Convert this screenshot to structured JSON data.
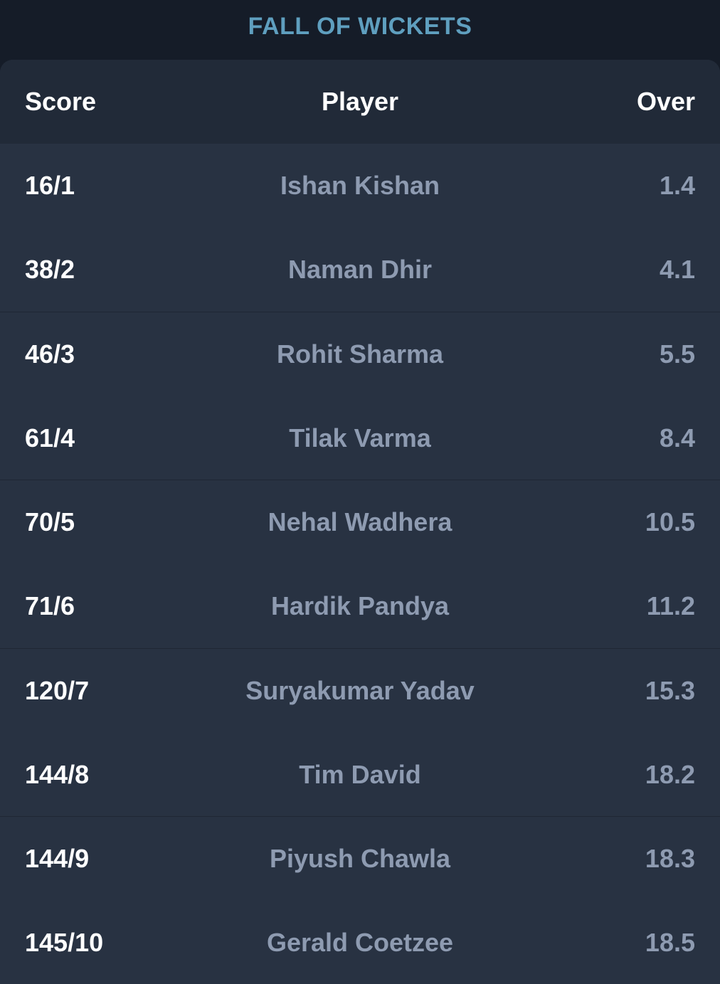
{
  "title": "FALL OF WICKETS",
  "columns": {
    "score": "Score",
    "player": "Player",
    "over": "Over"
  },
  "rows": [
    {
      "score": "16/1",
      "player": "Ishan Kishan",
      "over": "1.4"
    },
    {
      "score": "38/2",
      "player": "Naman Dhir",
      "over": "4.1"
    },
    {
      "score": "46/3",
      "player": "Rohit Sharma",
      "over": "5.5"
    },
    {
      "score": "61/4",
      "player": "Tilak Varma",
      "over": "8.4"
    },
    {
      "score": "70/5",
      "player": "Nehal Wadhera",
      "over": "10.5"
    },
    {
      "score": "71/6",
      "player": "Hardik Pandya",
      "over": "11.2"
    },
    {
      "score": "120/7",
      "player": "Suryakumar Yadav",
      "over": "15.3"
    },
    {
      "score": "144/8",
      "player": "Tim David",
      "over": "18.2"
    },
    {
      "score": "144/9",
      "player": "Piyush Chawla",
      "over": "18.3"
    },
    {
      "score": "145/10",
      "player": "Gerald Coetzee",
      "over": "18.5"
    }
  ],
  "colors": {
    "title": "#5f9fbf",
    "background": "#151c28",
    "card": "#283242",
    "header": "#212a38",
    "muted_text": "#8e9bb1"
  }
}
